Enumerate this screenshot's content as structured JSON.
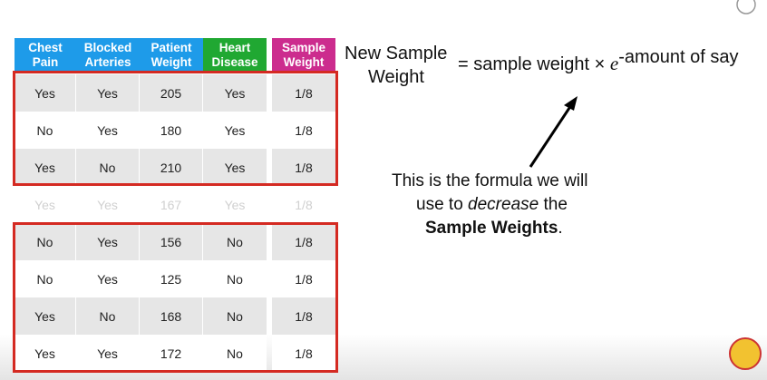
{
  "table": {
    "headers": [
      "Chest Pain",
      "Blocked Arteries",
      "Patient Weight",
      "Heart Disease",
      "Sample Weight"
    ],
    "rows": [
      [
        "Yes",
        "Yes",
        "205",
        "Yes",
        "1/8"
      ],
      [
        "No",
        "Yes",
        "180",
        "Yes",
        "1/8"
      ],
      [
        "Yes",
        "No",
        "210",
        "Yes",
        "1/8"
      ],
      [
        "Yes",
        "Yes",
        "167",
        "Yes",
        "1/8"
      ],
      [
        "No",
        "Yes",
        "156",
        "No",
        "1/8"
      ],
      [
        "No",
        "Yes",
        "125",
        "No",
        "1/8"
      ],
      [
        "Yes",
        "No",
        "168",
        "No",
        "1/8"
      ],
      [
        "Yes",
        "Yes",
        "172",
        "No",
        "1/8"
      ]
    ]
  },
  "formula": {
    "lhs_line1": "New Sample",
    "lhs_line2": "Weight",
    "rhs": "= sample weight ×",
    "base": "e",
    "exponent": "-amount of say"
  },
  "note": {
    "line1": "This is the formula we will",
    "line2_start": "use to",
    "line2_emphasis": "decrease",
    "line2_end": "the",
    "line3_bold": "Sample Weights",
    "line3_end": "."
  }
}
